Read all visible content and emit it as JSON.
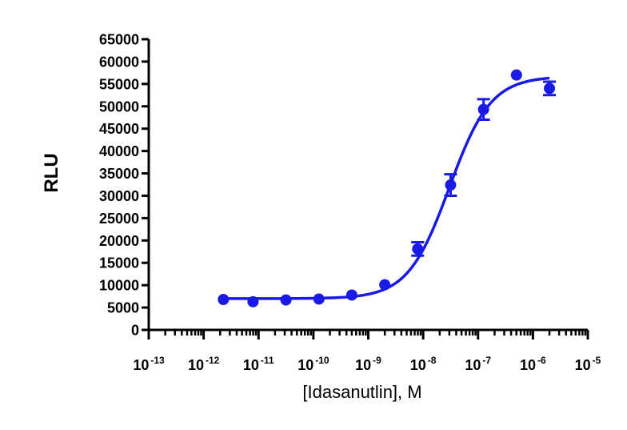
{
  "chart_data": {
    "type": "scatter",
    "title": "",
    "xlabel": "[Idasanutlin], M",
    "ylabel": "RLU",
    "x_scale": "log10",
    "xlim": [
      1e-13,
      1e-05
    ],
    "ylim": [
      0,
      65000
    ],
    "y_ticks": [
      0,
      5000,
      10000,
      15000,
      20000,
      25000,
      30000,
      35000,
      40000,
      45000,
      50000,
      55000,
      60000,
      65000
    ],
    "x_tick_exponents": [
      "-13",
      "-12",
      "-11",
      "-10",
      "-9",
      "-8",
      "-7",
      "-6",
      "-5"
    ],
    "x_tick_base": "10",
    "grid": false,
    "legend": "none",
    "color": "#1a1ae6",
    "series": [
      {
        "points": [
          {
            "x": 2.29e-12,
            "y": 6800,
            "err": 0
          },
          {
            "x": 7.94e-12,
            "y": 6300,
            "err": 0
          },
          {
            "x": 3.16e-11,
            "y": 6700,
            "err": 0
          },
          {
            "x": 1.26e-10,
            "y": 6900,
            "err": 0
          },
          {
            "x": 5.01e-10,
            "y": 7800,
            "err": 0
          },
          {
            "x": 2e-09,
            "y": 10100,
            "err": 0
          },
          {
            "x": 7.94e-09,
            "y": 18100,
            "err": 1500
          },
          {
            "x": 3.16e-08,
            "y": 32400,
            "err": 2400
          },
          {
            "x": 1.26e-07,
            "y": 49300,
            "err": 2300
          },
          {
            "x": 5.01e-07,
            "y": 57000,
            "err": 0
          },
          {
            "x": 2e-06,
            "y": 54000,
            "err": 1500
          }
        ],
        "fit": {
          "model": "4PL",
          "bottom": 7000,
          "top": 56700,
          "ec50": 3e-08,
          "hill": 1.15
        }
      }
    ]
  }
}
